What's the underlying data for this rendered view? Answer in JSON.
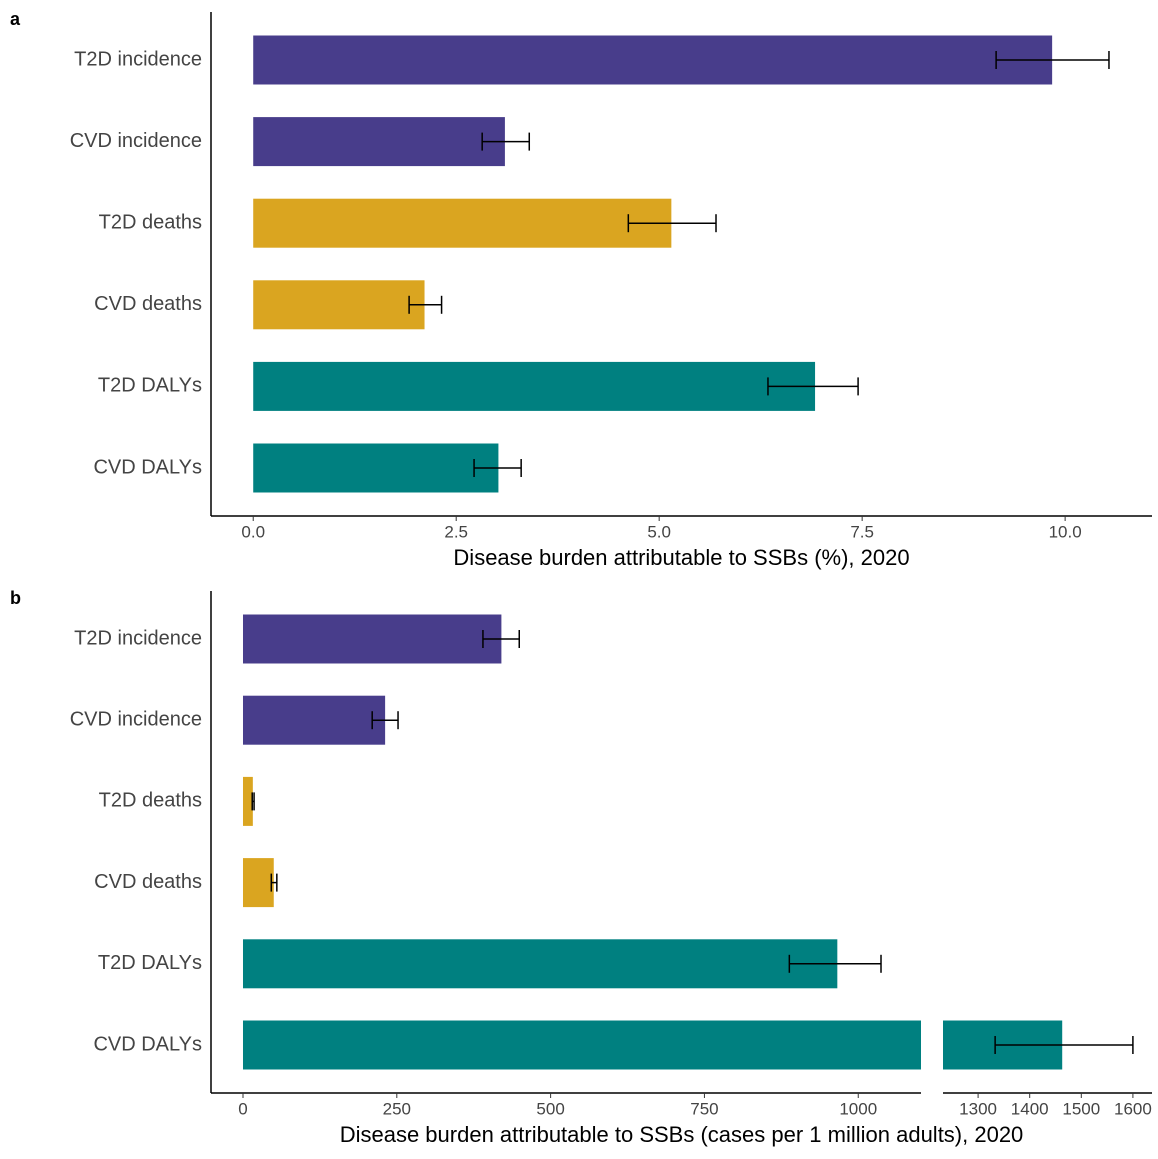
{
  "chart_data": [
    {
      "type": "bar",
      "orientation": "horizontal",
      "panel_label": "a",
      "x_label": "Disease burden attributable to SSBs (%), 2020",
      "categories": [
        "T2D incidence",
        "CVD incidence",
        "T2D deaths",
        "CVD deaths",
        "T2D DALYs",
        "CVD DALYs"
      ],
      "values": [
        9.84,
        3.1,
        5.15,
        2.11,
        6.92,
        3.02
      ],
      "ci_low": [
        9.15,
        2.82,
        4.62,
        1.92,
        6.34,
        2.72
      ],
      "ci_high": [
        10.54,
        3.4,
        5.7,
        2.32,
        7.45,
        3.3
      ],
      "colors": [
        "#483d8b",
        "#483d8b",
        "#daa520",
        "#daa520",
        "#008080",
        "#008080"
      ],
      "xlim": [
        -0.52,
        11.07
      ],
      "xticks": [
        {
          "value": 0,
          "label": "0.0"
        },
        2.5,
        {
          "value": 5,
          "label": "5.0"
        },
        7.5,
        {
          "value": 10,
          "label": "10.0"
        }
      ],
      "grid": false
    },
    {
      "type": "bar",
      "orientation": "horizontal",
      "panel_label": "b",
      "x_label": "Disease burden attributable to SSBs (cases per 1 million adults), 2020",
      "categories": [
        "T2D incidence",
        "CVD incidence",
        "T2D deaths",
        "CVD deaths",
        "T2D DALYs",
        "CVD DALYs"
      ],
      "values": [
        420,
        231,
        16,
        50,
        966,
        1463
      ],
      "ci_low": [
        390,
        210,
        15,
        46,
        888,
        1333
      ],
      "ci_high": [
        449,
        252,
        18,
        55,
        1037,
        1600
      ],
      "colors": [
        "#483d8b",
        "#483d8b",
        "#daa520",
        "#daa520",
        "#008080",
        "#008080"
      ],
      "xlim": [
        -52,
        1637
      ],
      "x_break": [
        1102,
        1232
      ],
      "xticks": [
        0,
        250,
        500,
        750,
        1000,
        1300,
        1400,
        1500,
        1600
      ],
      "grid": false
    }
  ]
}
